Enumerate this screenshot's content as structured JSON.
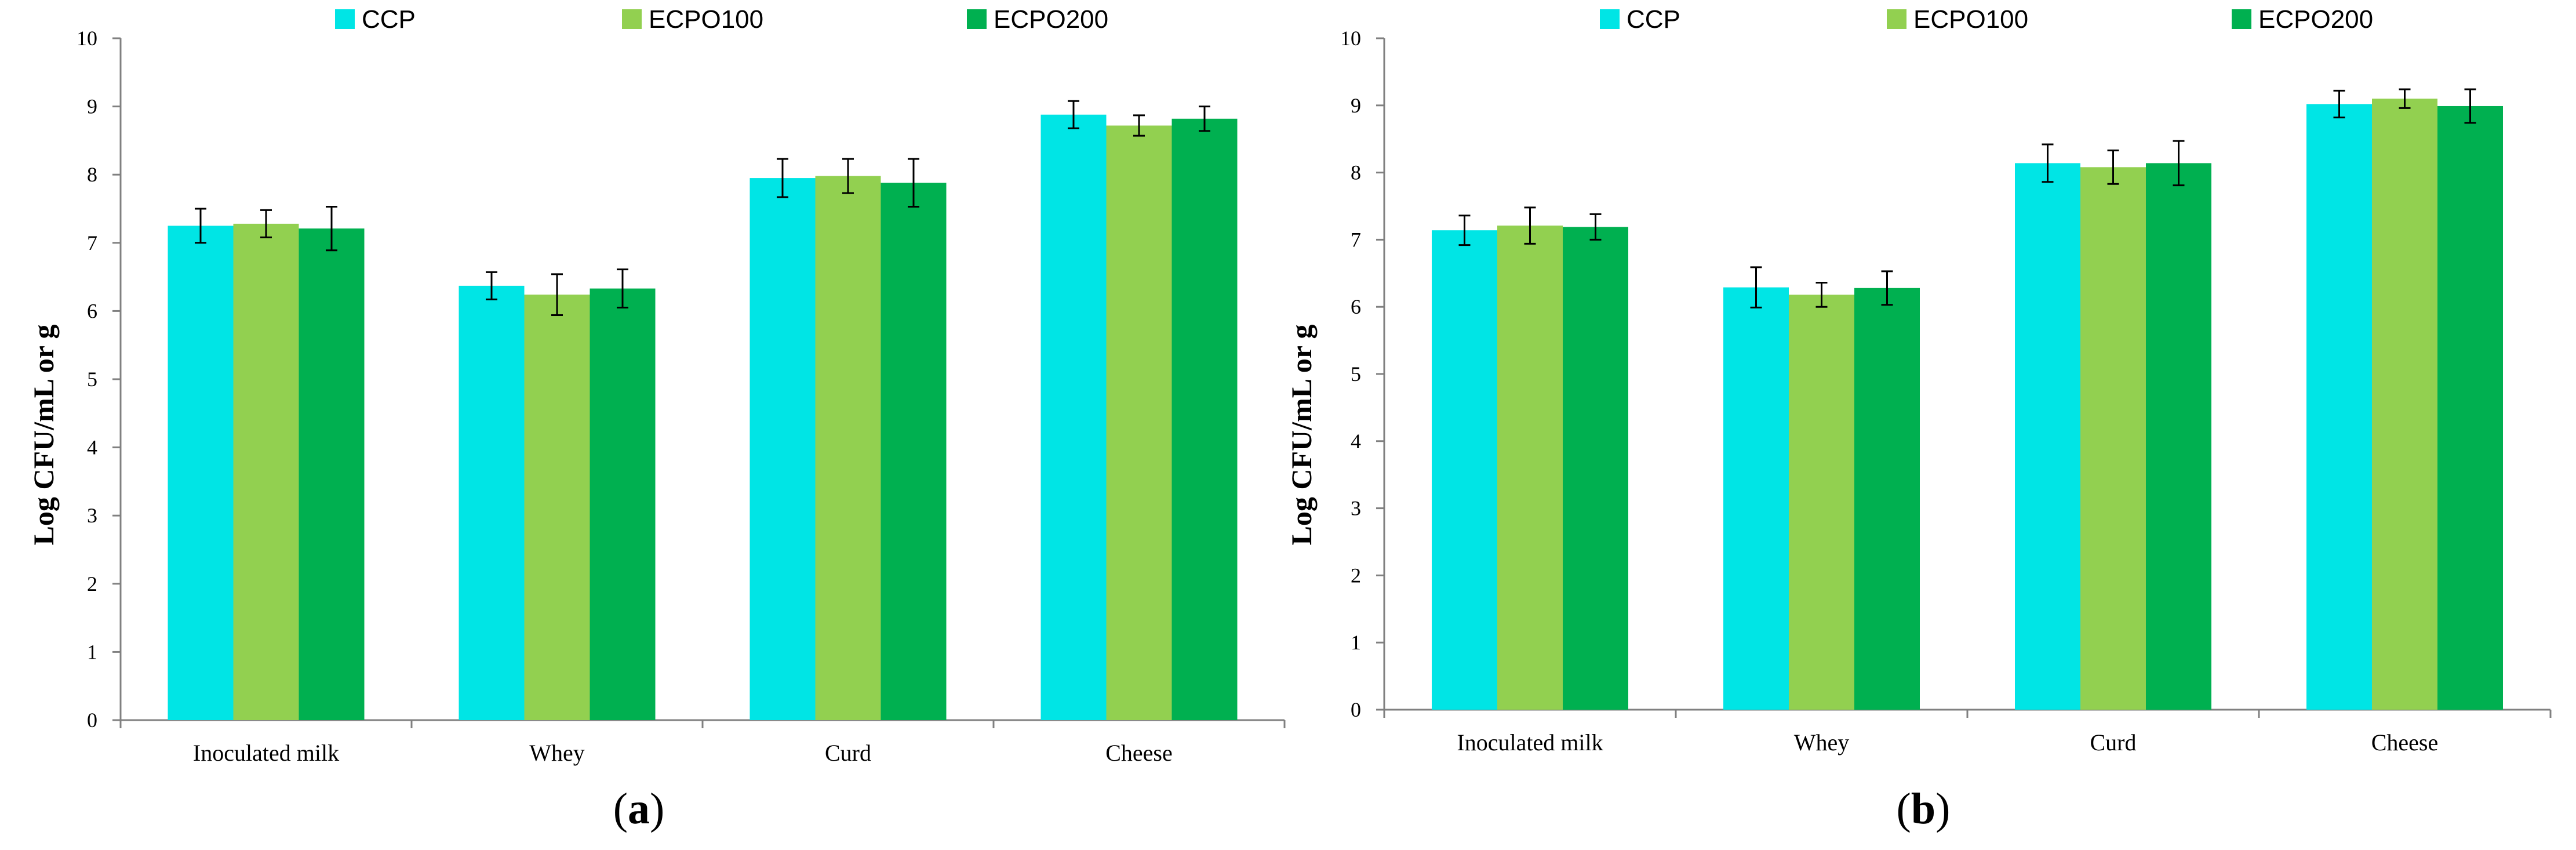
{
  "figure": {
    "panels": [
      {
        "label_open": "(",
        "label_letter": "a",
        "label_close": ")",
        "chart_data": {
          "type": "bar",
          "categories": [
            "Inoculated milk",
            "Whey",
            "Curd",
            "Cheese"
          ],
          "series": [
            {
              "name": "CCP",
              "color": "#00E5E5",
              "values": [
                7.25,
                6.37,
                7.95,
                8.88
              ],
              "errors": [
                0.25,
                0.2,
                0.28,
                0.2
              ]
            },
            {
              "name": "ECPO100",
              "color": "#92D050",
              "values": [
                7.28,
                6.24,
                7.98,
                8.72
              ],
              "errors": [
                0.2,
                0.3,
                0.25,
                0.15
              ]
            },
            {
              "name": "ECPO200",
              "color": "#00B050",
              "values": [
                7.21,
                6.33,
                7.88,
                8.82
              ],
              "errors": [
                0.32,
                0.28,
                0.35,
                0.18
              ]
            }
          ],
          "ylabel": "Log CFU/mL or g",
          "ylim": [
            0,
            10
          ],
          "yticks": [
            "0",
            "1",
            "2",
            "3",
            "4",
            "5",
            "6",
            "7",
            "8",
            "9",
            "10"
          ],
          "grid": false,
          "legend": "top"
        }
      },
      {
        "label_open": "(",
        "label_letter": "b",
        "label_close": ")",
        "chart_data": {
          "type": "bar",
          "categories": [
            "Inoculated milk",
            "Whey",
            "Curd",
            "Cheese"
          ],
          "series": [
            {
              "name": "CCP",
              "color": "#00E5E5",
              "values": [
                7.14,
                6.29,
                8.14,
                9.02
              ],
              "errors": [
                0.22,
                0.3,
                0.28,
                0.2
              ]
            },
            {
              "name": "ECPO100",
              "color": "#92D050",
              "values": [
                7.21,
                6.18,
                8.08,
                9.1
              ],
              "errors": [
                0.27,
                0.18,
                0.25,
                0.14
              ]
            },
            {
              "name": "ECPO200",
              "color": "#00B050",
              "values": [
                7.19,
                6.28,
                8.14,
                8.99
              ],
              "errors": [
                0.19,
                0.25,
                0.33,
                0.25
              ]
            }
          ],
          "ylabel": "Log CFU/mL or g",
          "ylim": [
            0,
            10
          ],
          "yticks": [
            "0",
            "1",
            "2",
            "3",
            "4",
            "5",
            "6",
            "7",
            "8",
            "9",
            "10"
          ],
          "grid": false,
          "legend": "top"
        }
      }
    ]
  }
}
